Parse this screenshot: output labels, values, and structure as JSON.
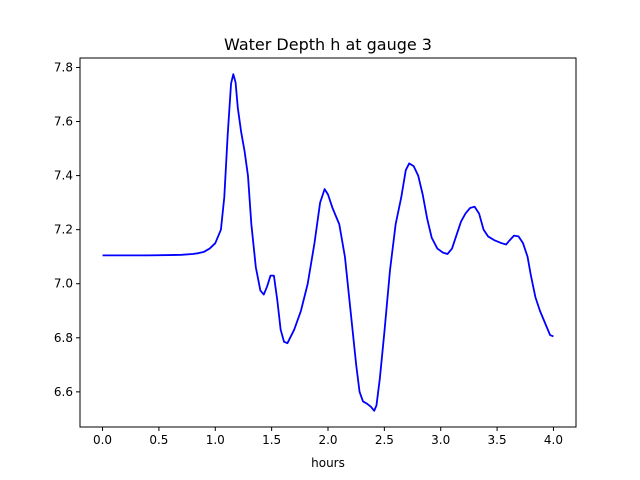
{
  "chart_data": {
    "type": "line",
    "title": "Water Depth h at gauge 3",
    "xlabel": "hours",
    "ylabel": "",
    "xlim": [
      -0.2,
      4.2
    ],
    "ylim": [
      6.47,
      7.835
    ],
    "xticks": [
      "0.0",
      "0.5",
      "1.0",
      "1.5",
      "2.0",
      "2.5",
      "3.0",
      "3.5",
      "4.0"
    ],
    "yticks": [
      "6.6",
      "6.8",
      "7.0",
      "7.2",
      "7.4",
      "7.6",
      "7.8"
    ],
    "grid": false,
    "legend": "none",
    "series": [
      {
        "color": "#0000ff",
        "points": [
          [
            0.0,
            7.105
          ],
          [
            0.2,
            7.105
          ],
          [
            0.4,
            7.105
          ],
          [
            0.6,
            7.106
          ],
          [
            0.7,
            7.107
          ],
          [
            0.8,
            7.11
          ],
          [
            0.85,
            7.113
          ],
          [
            0.9,
            7.118
          ],
          [
            0.95,
            7.13
          ],
          [
            1.0,
            7.15
          ],
          [
            1.05,
            7.2
          ],
          [
            1.08,
            7.32
          ],
          [
            1.11,
            7.55
          ],
          [
            1.14,
            7.74
          ],
          [
            1.16,
            7.775
          ],
          [
            1.18,
            7.745
          ],
          [
            1.2,
            7.65
          ],
          [
            1.23,
            7.56
          ],
          [
            1.26,
            7.49
          ],
          [
            1.29,
            7.4
          ],
          [
            1.32,
            7.22
          ],
          [
            1.36,
            7.06
          ],
          [
            1.4,
            6.975
          ],
          [
            1.43,
            6.96
          ],
          [
            1.46,
            6.99
          ],
          [
            1.49,
            7.03
          ],
          [
            1.52,
            7.03
          ],
          [
            1.55,
            6.94
          ],
          [
            1.58,
            6.83
          ],
          [
            1.61,
            6.785
          ],
          [
            1.64,
            6.78
          ],
          [
            1.7,
            6.83
          ],
          [
            1.76,
            6.9
          ],
          [
            1.82,
            7.0
          ],
          [
            1.88,
            7.15
          ],
          [
            1.93,
            7.3
          ],
          [
            1.97,
            7.35
          ],
          [
            2.0,
            7.33
          ],
          [
            2.04,
            7.28
          ],
          [
            2.1,
            7.22
          ],
          [
            2.15,
            7.1
          ],
          [
            2.2,
            6.9
          ],
          [
            2.25,
            6.7
          ],
          [
            2.28,
            6.6
          ],
          [
            2.31,
            6.565
          ],
          [
            2.35,
            6.555
          ],
          [
            2.38,
            6.545
          ],
          [
            2.41,
            6.53
          ],
          [
            2.43,
            6.55
          ],
          [
            2.46,
            6.65
          ],
          [
            2.5,
            6.82
          ],
          [
            2.55,
            7.05
          ],
          [
            2.6,
            7.22
          ],
          [
            2.65,
            7.32
          ],
          [
            2.69,
            7.42
          ],
          [
            2.72,
            7.445
          ],
          [
            2.76,
            7.435
          ],
          [
            2.8,
            7.4
          ],
          [
            2.84,
            7.33
          ],
          [
            2.88,
            7.24
          ],
          [
            2.92,
            7.17
          ],
          [
            2.97,
            7.13
          ],
          [
            3.02,
            7.115
          ],
          [
            3.06,
            7.11
          ],
          [
            3.1,
            7.13
          ],
          [
            3.14,
            7.18
          ],
          [
            3.18,
            7.23
          ],
          [
            3.22,
            7.26
          ],
          [
            3.26,
            7.28
          ],
          [
            3.3,
            7.285
          ],
          [
            3.34,
            7.26
          ],
          [
            3.38,
            7.2
          ],
          [
            3.42,
            7.175
          ],
          [
            3.48,
            7.16
          ],
          [
            3.54,
            7.15
          ],
          [
            3.58,
            7.145
          ],
          [
            3.61,
            7.16
          ],
          [
            3.65,
            7.178
          ],
          [
            3.69,
            7.175
          ],
          [
            3.73,
            7.15
          ],
          [
            3.77,
            7.1
          ],
          [
            3.8,
            7.03
          ],
          [
            3.84,
            6.95
          ],
          [
            3.88,
            6.9
          ],
          [
            3.93,
            6.85
          ],
          [
            3.97,
            6.81
          ],
          [
            4.0,
            6.805
          ]
        ]
      }
    ]
  }
}
